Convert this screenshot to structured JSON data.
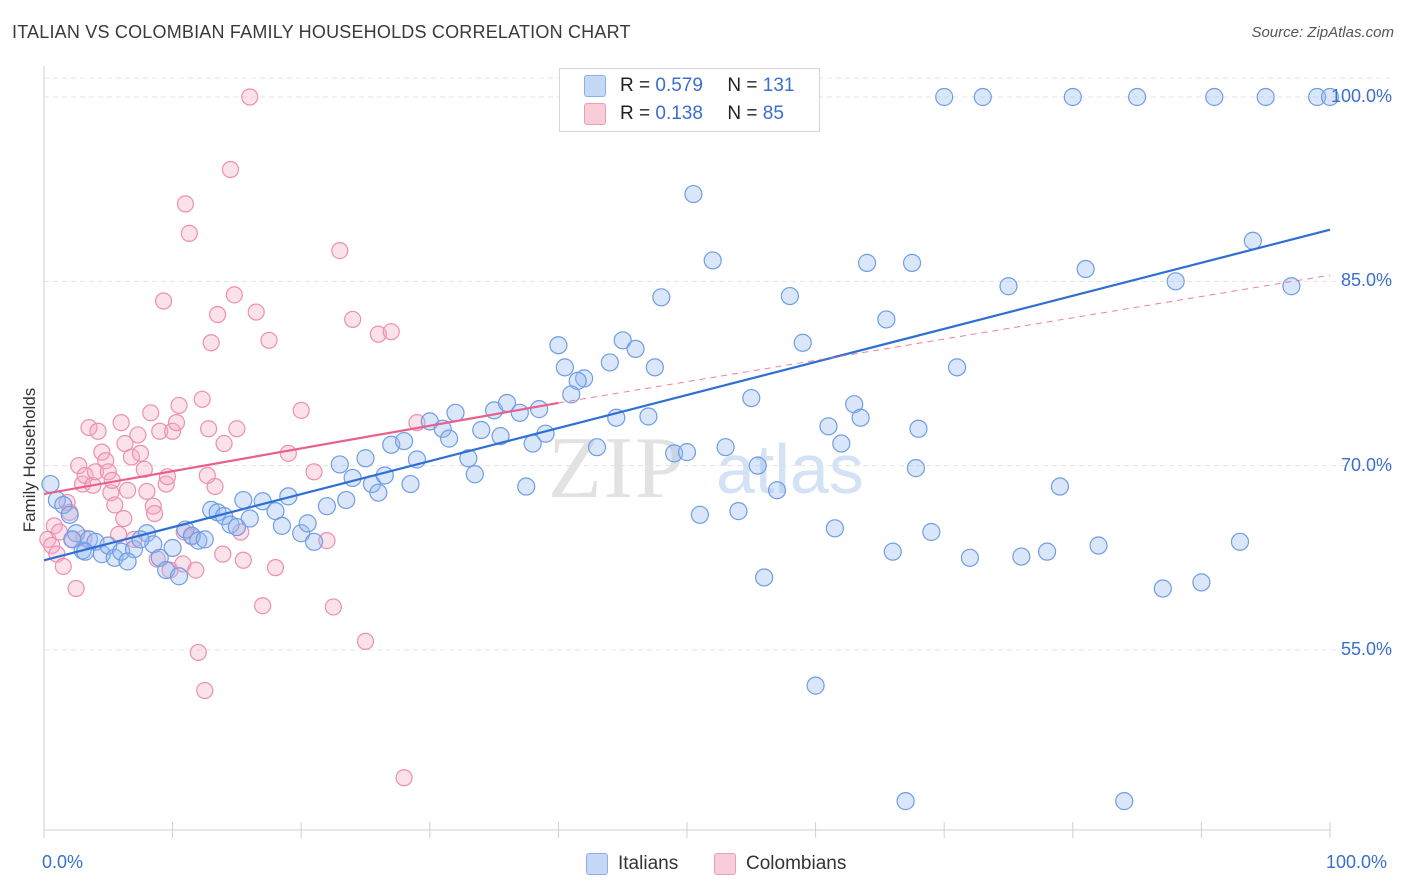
{
  "title": "ITALIAN VS COLOMBIAN FAMILY HOUSEHOLDS CORRELATION CHART",
  "source": "Source: ZipAtlas.com",
  "colors": {
    "blue": "#5b8fe0",
    "blue_line": "#2e6fd4",
    "pink": "#ec7fa2",
    "pink_line": "#e8608f",
    "accent_text": "#3a6fcb",
    "grid": "#e3e3e3"
  },
  "legend": {
    "r_label": "R =",
    "n_label": "N =",
    "italians": {
      "r": "0.579",
      "n": "131"
    },
    "colombians": {
      "r": "0.138",
      "n": "85"
    }
  },
  "bottom_legend": {
    "italians": "Italians",
    "colombians": "Colombians"
  },
  "watermark": {
    "zip": "ZIP",
    "atlas": "atlas"
  },
  "chart_data": {
    "type": "scatter",
    "title": "ITALIAN VS COLOMBIAN FAMILY HOUSEHOLDS CORRELATION CHART",
    "xlabel": "",
    "ylabel": "Family Households",
    "xlim": [
      0,
      100
    ],
    "ylim": [
      41,
      101
    ],
    "x_tick_labels": [
      "0.0%",
      "100.0%"
    ],
    "y_ticks": [
      55,
      70,
      85,
      100
    ],
    "y_tick_labels": [
      "55.0%",
      "70.0%",
      "85.0%",
      "100.0%"
    ],
    "grid": true,
    "legend_position": "top-center",
    "series": [
      {
        "name": "Italians",
        "color": "#5b8fe0",
        "r": 0.579,
        "n": 131,
        "trend": {
          "x": [
            0,
            100
          ],
          "y": [
            62.3,
            89.2
          ]
        },
        "points": [
          [
            0.5,
            68.5
          ],
          [
            1.0,
            67.2
          ],
          [
            1.5,
            66.8
          ],
          [
            2.0,
            66.0
          ],
          [
            2.5,
            64.5
          ],
          [
            3.0,
            63.1
          ],
          [
            3.5,
            64.0
          ],
          [
            4.0,
            63.8
          ],
          [
            4.5,
            62.8
          ],
          [
            5.0,
            63.5
          ],
          [
            5.5,
            62.5
          ],
          [
            6.0,
            63.0
          ],
          [
            7.0,
            63.2
          ],
          [
            8.0,
            64.5
          ],
          [
            8.5,
            63.6
          ],
          [
            9.0,
            62.5
          ],
          [
            9.5,
            61.5
          ],
          [
            10.0,
            63.3
          ],
          [
            11.0,
            64.8
          ],
          [
            11.5,
            64.3
          ],
          [
            12.0,
            63.9
          ],
          [
            13.0,
            66.4
          ],
          [
            13.5,
            66.2
          ],
          [
            14.0,
            65.9
          ],
          [
            14.5,
            65.2
          ],
          [
            15.0,
            65.0
          ],
          [
            15.5,
            67.2
          ],
          [
            17.0,
            67.1
          ],
          [
            18.0,
            66.3
          ],
          [
            19.0,
            67.5
          ],
          [
            20.0,
            64.5
          ],
          [
            20.5,
            65.3
          ],
          [
            22.0,
            66.7
          ],
          [
            23.0,
            70.1
          ],
          [
            24.0,
            69.0
          ],
          [
            25.0,
            70.6
          ],
          [
            25.5,
            68.5
          ],
          [
            26.0,
            67.8
          ],
          [
            27.0,
            71.7
          ],
          [
            28.0,
            72.0
          ],
          [
            29.0,
            70.5
          ],
          [
            30.0,
            73.6
          ],
          [
            31.0,
            73.0
          ],
          [
            32.0,
            74.3
          ],
          [
            33.0,
            70.6
          ],
          [
            34.0,
            72.9
          ],
          [
            35.0,
            74.5
          ],
          [
            36.0,
            75.1
          ],
          [
            37.0,
            74.3
          ],
          [
            37.5,
            68.3
          ],
          [
            38.0,
            71.8
          ],
          [
            39.0,
            72.6
          ],
          [
            40.0,
            79.8
          ],
          [
            40.5,
            78.0
          ],
          [
            41.0,
            75.8
          ],
          [
            42.0,
            77.1
          ],
          [
            43.0,
            71.5
          ],
          [
            44.0,
            78.4
          ],
          [
            45.0,
            80.2
          ],
          [
            46.0,
            79.5
          ],
          [
            47.0,
            74.0
          ],
          [
            48.0,
            83.7
          ],
          [
            49.0,
            71.0
          ],
          [
            50.5,
            92.1
          ],
          [
            51.0,
            66.0
          ],
          [
            52.0,
            86.7
          ],
          [
            53.0,
            71.5
          ],
          [
            54.0,
            66.3
          ],
          [
            55.0,
            75.5
          ],
          [
            56.0,
            60.9
          ],
          [
            57.0,
            68.0
          ],
          [
            58.0,
            83.8
          ],
          [
            59.0,
            80.0
          ],
          [
            60.0,
            52.1
          ],
          [
            61.0,
            73.2
          ],
          [
            62.0,
            71.8
          ],
          [
            63.0,
            75.0
          ],
          [
            64.0,
            86.5
          ],
          [
            65.5,
            81.9
          ],
          [
            66.0,
            63.0
          ],
          [
            67.0,
            42.7
          ],
          [
            67.5,
            86.5
          ],
          [
            68.0,
            73.0
          ],
          [
            69.0,
            64.6
          ],
          [
            70.0,
            100.0
          ],
          [
            72.0,
            62.5
          ],
          [
            73.0,
            100.0
          ],
          [
            75.0,
            84.6
          ],
          [
            76.0,
            62.6
          ],
          [
            78.0,
            63.0
          ],
          [
            79.0,
            68.3
          ],
          [
            80.0,
            100.0
          ],
          [
            81.0,
            86.0
          ],
          [
            82.0,
            63.5
          ],
          [
            84.0,
            42.7
          ],
          [
            85.0,
            100.0
          ],
          [
            87.0,
            60.0
          ],
          [
            88.0,
            85.0
          ],
          [
            90.0,
            60.5
          ],
          [
            91.0,
            100.0
          ],
          [
            93.0,
            63.8
          ],
          [
            94.0,
            88.3
          ],
          [
            95.0,
            100.0
          ],
          [
            97.0,
            84.6
          ],
          [
            99.0,
            100.0
          ],
          [
            100.0,
            100.0
          ],
          [
            2.2,
            64.0
          ],
          [
            3.2,
            63.0
          ],
          [
            6.5,
            62.2
          ],
          [
            7.5,
            64.0
          ],
          [
            10.5,
            61.0
          ],
          [
            12.5,
            64.0
          ],
          [
            16.0,
            65.7
          ],
          [
            18.5,
            65.1
          ],
          [
            21.0,
            63.8
          ],
          [
            23.5,
            67.2
          ],
          [
            26.5,
            69.2
          ],
          [
            28.5,
            68.5
          ],
          [
            31.5,
            72.2
          ],
          [
            33.5,
            69.3
          ],
          [
            35.5,
            72.4
          ],
          [
            38.5,
            74.6
          ],
          [
            41.5,
            76.9
          ],
          [
            44.5,
            73.9
          ],
          [
            47.5,
            78.0
          ],
          [
            50.0,
            71.1
          ],
          [
            55.5,
            70.0
          ],
          [
            61.5,
            64.9
          ],
          [
            63.5,
            73.9
          ],
          [
            67.8,
            69.8
          ],
          [
            71.0,
            78.0
          ]
        ]
      },
      {
        "name": "Colombians",
        "color": "#ec7fa2",
        "r": 0.138,
        "n": 85,
        "trend": {
          "x": [
            0,
            40
          ],
          "y": [
            67.7,
            75.1
          ]
        },
        "trend_dashed": {
          "x": [
            40,
            100
          ],
          "y": [
            75.1,
            85.5
          ]
        },
        "points": [
          [
            0.3,
            64.0
          ],
          [
            0.6,
            63.5
          ],
          [
            0.8,
            65.1
          ],
          [
            1.0,
            62.8
          ],
          [
            1.2,
            64.6
          ],
          [
            1.5,
            61.8
          ],
          [
            1.8,
            67.0
          ],
          [
            2.0,
            66.2
          ],
          [
            2.2,
            64.0
          ],
          [
            2.5,
            60.0
          ],
          [
            2.7,
            70.0
          ],
          [
            3.0,
            68.5
          ],
          [
            3.2,
            69.2
          ],
          [
            3.5,
            73.1
          ],
          [
            3.8,
            68.4
          ],
          [
            4.0,
            69.5
          ],
          [
            4.2,
            72.8
          ],
          [
            4.5,
            71.1
          ],
          [
            4.8,
            70.4
          ],
          [
            5.0,
            69.5
          ],
          [
            5.2,
            67.8
          ],
          [
            5.5,
            66.8
          ],
          [
            5.8,
            64.4
          ],
          [
            6.0,
            73.5
          ],
          [
            6.3,
            71.8
          ],
          [
            6.5,
            68.0
          ],
          [
            6.8,
            70.7
          ],
          [
            7.0,
            64.0
          ],
          [
            7.3,
            72.5
          ],
          [
            7.5,
            71.0
          ],
          [
            7.8,
            69.7
          ],
          [
            8.0,
            67.9
          ],
          [
            8.3,
            74.3
          ],
          [
            8.5,
            66.7
          ],
          [
            8.8,
            62.4
          ],
          [
            9.0,
            72.8
          ],
          [
            9.3,
            83.4
          ],
          [
            9.5,
            68.5
          ],
          [
            9.8,
            61.5
          ],
          [
            10.0,
            72.8
          ],
          [
            10.3,
            73.5
          ],
          [
            10.5,
            74.9
          ],
          [
            10.8,
            62.0
          ],
          [
            11.0,
            91.3
          ],
          [
            11.3,
            88.9
          ],
          [
            11.5,
            64.2
          ],
          [
            11.8,
            61.5
          ],
          [
            12.0,
            54.8
          ],
          [
            12.3,
            75.4
          ],
          [
            12.5,
            51.7
          ],
          [
            12.8,
            73.0
          ],
          [
            13.0,
            80.0
          ],
          [
            13.3,
            68.3
          ],
          [
            13.5,
            82.3
          ],
          [
            14.0,
            71.8
          ],
          [
            14.5,
            94.1
          ],
          [
            14.8,
            83.9
          ],
          [
            15.0,
            73.0
          ],
          [
            15.3,
            64.6
          ],
          [
            15.5,
            62.3
          ],
          [
            16.0,
            100.0
          ],
          [
            16.5,
            82.5
          ],
          [
            17.0,
            58.6
          ],
          [
            17.5,
            80.2
          ],
          [
            18.0,
            61.7
          ],
          [
            19.0,
            71.0
          ],
          [
            20.0,
            74.5
          ],
          [
            21.0,
            69.5
          ],
          [
            22.0,
            63.9
          ],
          [
            22.5,
            58.5
          ],
          [
            23.0,
            87.5
          ],
          [
            24.0,
            81.9
          ],
          [
            25.0,
            55.7
          ],
          [
            26.0,
            80.7
          ],
          [
            27.0,
            80.9
          ],
          [
            28.0,
            44.6
          ],
          [
            29.0,
            73.5
          ],
          [
            3.1,
            64.1
          ],
          [
            5.3,
            68.8
          ],
          [
            6.2,
            65.7
          ],
          [
            8.6,
            66.1
          ],
          [
            9.6,
            69.1
          ],
          [
            10.9,
            64.6
          ],
          [
            12.7,
            69.2
          ],
          [
            13.9,
            62.8
          ]
        ]
      }
    ]
  }
}
